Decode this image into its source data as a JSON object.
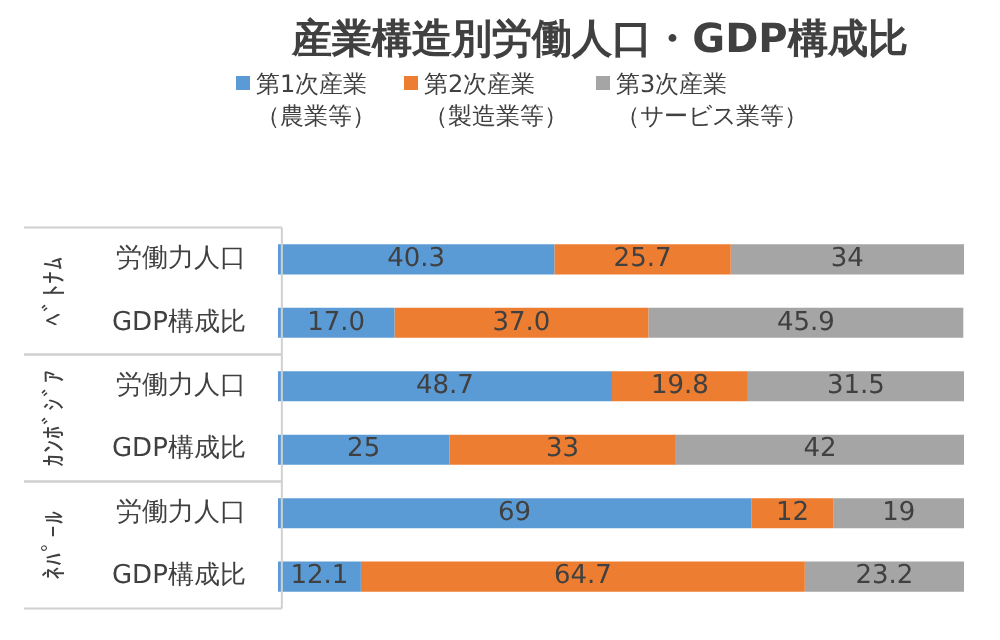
{
  "chart_data": {
    "type": "bar",
    "orientation": "horizontal",
    "stacked": true,
    "title": "産業構造別労働人口・GDP構成比",
    "categories": [
      "労働力人口",
      "GDP構成比",
      "労働力人口",
      "GDP構成比",
      "労働力人口",
      "GDP構成比"
    ],
    "series": [
      {
        "name": "第1次産業（農業等）",
        "color": "#5b9bd5",
        "values": [
          40.3,
          17.0,
          48.7,
          25,
          69,
          12.1
        ],
        "value_labels": [
          "40.3",
          "17.0",
          "48.7",
          "25",
          "69",
          "12.1"
        ]
      },
      {
        "name": "第2次産業（製造業等）",
        "color": "#ed7d31",
        "values": [
          25.7,
          37.0,
          19.8,
          33,
          12,
          64.7
        ],
        "value_labels": [
          "25.7",
          "37.0",
          "19.8",
          "33",
          "12",
          "64.7"
        ]
      },
      {
        "name": "第3次産業（サービス業等）",
        "color": "#a5a5a5",
        "values": [
          34,
          45.9,
          31.5,
          42,
          19,
          23.2
        ],
        "value_labels": [
          "34",
          "45.9",
          "31.5",
          "42",
          "19",
          "23.2"
        ]
      }
    ],
    "annotations": [
      "ﾍﾞﾄﾅﾑ",
      "ｶﾝﾎﾞｼﾞｱ",
      "ﾈﾊﾟｰﾙ"
    ],
    "xlim": [
      0,
      100
    ],
    "tick_labels": "y",
    "legend": "top"
  }
}
